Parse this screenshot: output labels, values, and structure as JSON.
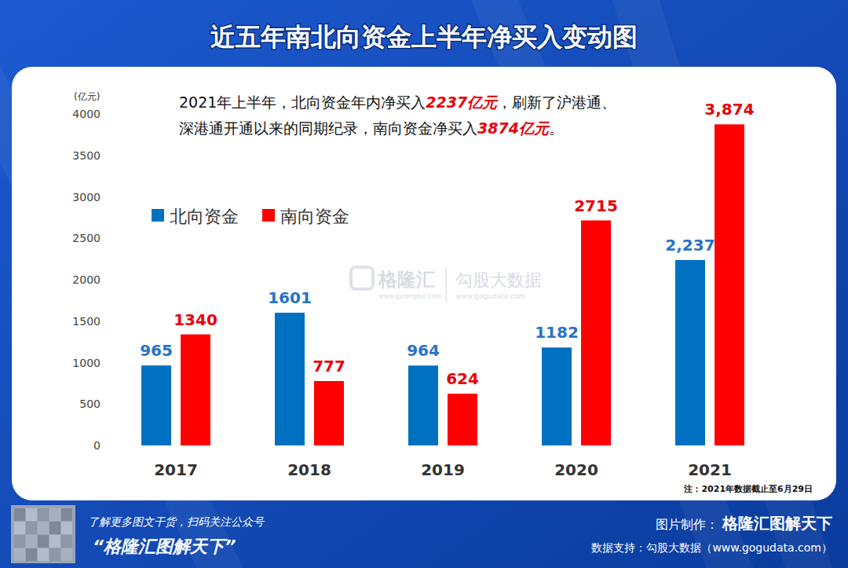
{
  "chart_data": {
    "type": "bar",
    "title": "近五年南北向资金上半年净买入变动图",
    "y_label": "(亿元)",
    "categories": [
      "2017",
      "2018",
      "2019",
      "2020",
      "2021"
    ],
    "series": [
      {
        "name": "北向资金",
        "color": "#0070c0",
        "values": [
          965,
          1601,
          964,
          1182,
          2237
        ],
        "value_labels": [
          "965",
          "1601",
          "964",
          "1182",
          "2,237"
        ]
      },
      {
        "name": "南向资金",
        "color": "#ff0000",
        "values": [
          1340,
          777,
          624,
          2715,
          3874
        ],
        "value_labels": [
          "1340",
          "777",
          "624",
          "2715",
          "3,874"
        ]
      }
    ],
    "ylim": [
      0,
      4000
    ],
    "yticks": [
      0,
      500,
      1000,
      1500,
      2000,
      2500,
      3000,
      3500,
      4000
    ],
    "grid": false,
    "legend": "upper left",
    "data_labels": true,
    "annotation": {
      "lines": [
        [
          "2021年上半年，北向资金年内净买入",
          "2237亿元",
          "，刷新了沪港通、"
        ],
        [
          "深港通开通以来的同期纪录，南向资金净买入",
          "3874亿元",
          "。"
        ]
      ]
    },
    "note": "注：2021年数据截止至6月29日"
  },
  "watermark": {
    "brand": "格隆汇",
    "brand_url": "www.gelonghui.com",
    "partner": "勾股大数据",
    "partner_url": "www.gogudata.com"
  },
  "footer": {
    "qr_caption": "了解更多图文干货，扫码关注公众号",
    "account": "“格隆汇图解天下”",
    "credit_label": "图片制作：",
    "credit": "格隆汇图解天下",
    "source": "数据支持：勾股大数据（www.gogudata.com）"
  }
}
